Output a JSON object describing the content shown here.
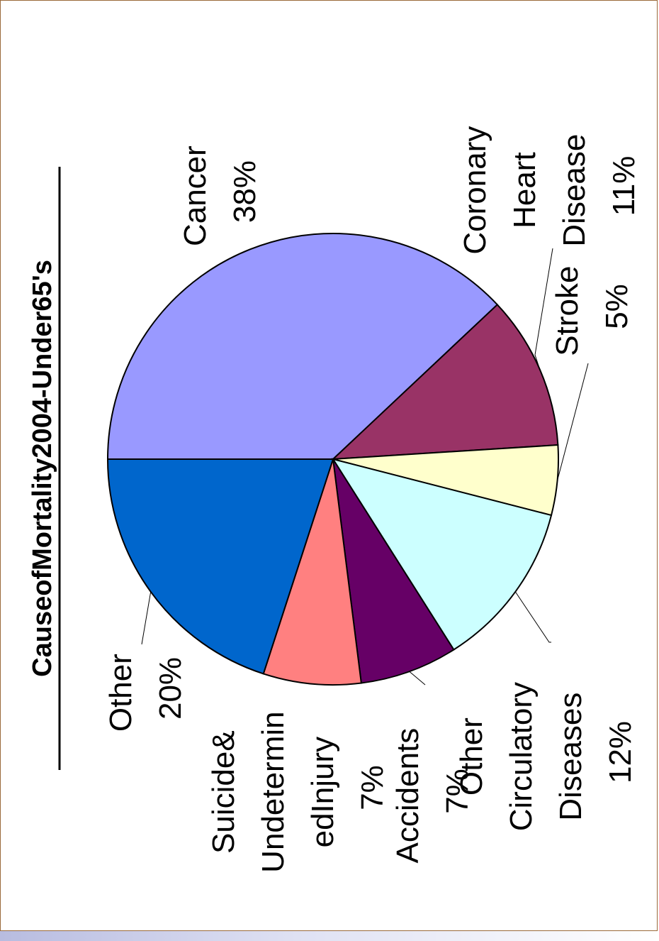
{
  "chart_data": {
    "type": "pie",
    "title": "CauseofMortality2004-Under65's",
    "categories": [
      "Cancer",
      "Coronary Heart Disease",
      "Stroke",
      "Other Circulatory Diseases",
      "Accidents",
      "Suicide& Undetermin edInjury",
      "Other"
    ],
    "values": [
      38,
      11,
      5,
      12,
      7,
      7,
      20
    ],
    "percent_labels": [
      "38%",
      "11%",
      "5%",
      "12%",
      "7%",
      "7%",
      "20%"
    ],
    "colors": [
      "#9999ff",
      "#993366",
      "#ffffcc",
      "#ccffff",
      "#660066",
      "#ff8080",
      "#0066cc"
    ],
    "label_lines": {
      "cancer": [
        "Cancer",
        "38%"
      ],
      "coronary": [
        "Coronary",
        "Heart",
        "Disease",
        "11%"
      ],
      "stroke": [
        "Stroke",
        "5%"
      ],
      "other_circ": [
        "Other",
        "Circulatory",
        "Diseases",
        "12%"
      ],
      "accidents": [
        "Accidents",
        "7%"
      ],
      "suicide": [
        "Suicide&",
        "Undetermin",
        "edInjury",
        "7%"
      ],
      "other": [
        "Other",
        "20%"
      ]
    },
    "orientation": "rotated 90° counter-clockwise"
  }
}
